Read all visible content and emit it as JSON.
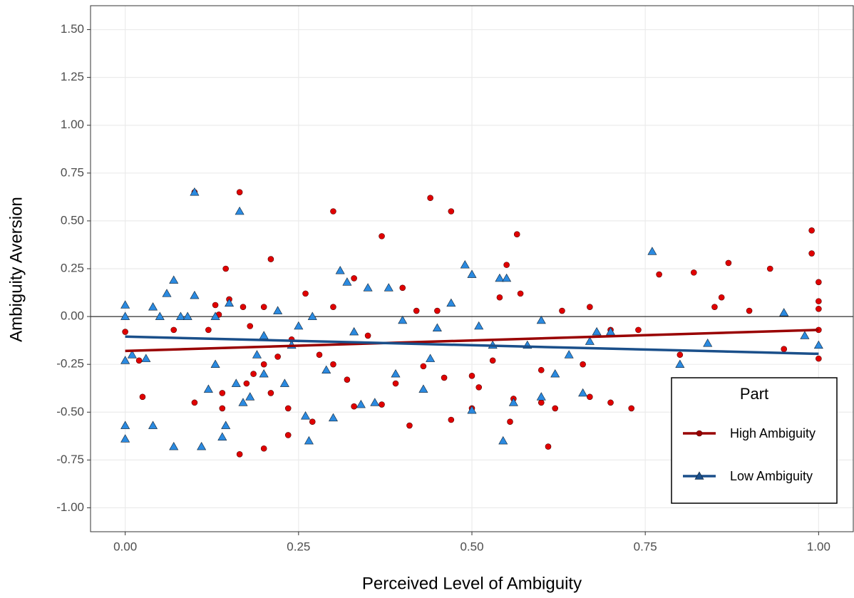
{
  "chart_data": {
    "type": "scatter",
    "x_label": "Perceived Level of Ambiguity",
    "y_label": "Ambiguity Aversion",
    "xlim": [
      -0.05,
      1.05
    ],
    "ylim": [
      -1.125,
      1.625
    ],
    "xticks": [
      {
        "value": 0,
        "label": "0.00"
      },
      {
        "value": 0.25,
        "label": "0.25"
      },
      {
        "value": 0.5,
        "label": "0.50"
      },
      {
        "value": 0.75,
        "label": "0.75"
      },
      {
        "value": 1,
        "label": "1.00"
      }
    ],
    "yticks": [
      {
        "value": -1,
        "label": "-1.00"
      },
      {
        "value": -0.75,
        "label": "-0.75"
      },
      {
        "value": -0.5,
        "label": "-0.50"
      },
      {
        "value": -0.25,
        "label": "-0.25"
      },
      {
        "value": 0,
        "label": "0.00"
      },
      {
        "value": 0.25,
        "label": "0.25"
      },
      {
        "value": 0.5,
        "label": "0.50"
      },
      {
        "value": 0.75,
        "label": "0.75"
      },
      {
        "value": 1,
        "label": "1.00"
      },
      {
        "value": 1.25,
        "label": "1.25"
      },
      {
        "value": 1.5,
        "label": "1.50"
      }
    ],
    "grid": true,
    "hline": 0,
    "legend_title": "Part",
    "legend_position": "right",
    "series": [
      {
        "name": "High Ambiguity",
        "marker": "circle",
        "color": "#e00000",
        "line_color": "#990000",
        "x": [
          0,
          0.02,
          0.025,
          0.07,
          0.1,
          0.1,
          0.12,
          0.13,
          0.135,
          0.14,
          0.14,
          0.145,
          0.15,
          0.165,
          0.165,
          0.17,
          0.175,
          0.18,
          0.185,
          0.2,
          0.2,
          0.2,
          0.21,
          0.21,
          0.22,
          0.235,
          0.235,
          0.24,
          0.26,
          0.27,
          0.28,
          0.3,
          0.3,
          0.3,
          0.32,
          0.33,
          0.33,
          0.35,
          0.37,
          0.37,
          0.39,
          0.4,
          0.41,
          0.42,
          0.43,
          0.44,
          0.45,
          0.46,
          0.47,
          0.47,
          0.5,
          0.5,
          0.51,
          0.53,
          0.54,
          0.55,
          0.555,
          0.56,
          0.565,
          0.57,
          0.6,
          0.6,
          0.61,
          0.62,
          0.63,
          0.66,
          0.67,
          0.67,
          0.7,
          0.7,
          0.73,
          0.74,
          0.77,
          0.8,
          0.82,
          0.85,
          0.86,
          0.87,
          0.9,
          0.93,
          0.95,
          0.99,
          0.99,
          1,
          1,
          1,
          1,
          1
        ],
        "values": [
          -0.08,
          -0.23,
          -0.42,
          -0.07,
          0.65,
          -0.45,
          -0.07,
          0.06,
          0.01,
          -0.4,
          -0.48,
          0.25,
          0.09,
          0.65,
          -0.72,
          0.05,
          -0.35,
          -0.05,
          -0.3,
          -0.69,
          0.05,
          -0.25,
          0.3,
          -0.4,
          -0.21,
          -0.62,
          -0.48,
          -0.12,
          0.12,
          -0.55,
          -0.2,
          0.55,
          0.05,
          -0.25,
          -0.33,
          0.2,
          -0.47,
          -0.1,
          0.42,
          -0.46,
          -0.35,
          0.15,
          -0.57,
          0.03,
          -0.26,
          0.62,
          0.03,
          -0.32,
          0.55,
          -0.54,
          -0.48,
          -0.31,
          -0.37,
          -0.23,
          0.1,
          0.27,
          -0.55,
          -0.43,
          0.43,
          0.12,
          -0.45,
          -0.28,
          -0.68,
          -0.48,
          0.03,
          -0.25,
          0.05,
          -0.42,
          -0.45,
          -0.07,
          -0.48,
          -0.07,
          0.22,
          -0.2,
          0.23,
          0.05,
          0.1,
          0.28,
          0.03,
          0.25,
          -0.17,
          0.45,
          0.33,
          0.18,
          0.08,
          -0.07,
          -0.22,
          0.04
        ],
        "fit_x": [
          0,
          1
        ],
        "fit_y": [
          -0.18,
          -0.07
        ]
      },
      {
        "name": "Low Ambiguity",
        "marker": "triangle",
        "color": "#2b8ae0",
        "line_color": "#1a4f8a",
        "x": [
          0,
          0,
          0,
          0,
          0,
          0.01,
          0.03,
          0.04,
          0.04,
          0.05,
          0.06,
          0.07,
          0.07,
          0.08,
          0.09,
          0.1,
          0.1,
          0.11,
          0.12,
          0.13,
          0.13,
          0.14,
          0.145,
          0.15,
          0.16,
          0.165,
          0.17,
          0.18,
          0.19,
          0.2,
          0.2,
          0.22,
          0.23,
          0.24,
          0.25,
          0.26,
          0.265,
          0.27,
          0.29,
          0.3,
          0.31,
          0.32,
          0.33,
          0.34,
          0.35,
          0.36,
          0.38,
          0.39,
          0.4,
          0.43,
          0.44,
          0.45,
          0.47,
          0.49,
          0.5,
          0.5,
          0.51,
          0.53,
          0.54,
          0.545,
          0.55,
          0.56,
          0.58,
          0.6,
          0.6,
          0.62,
          0.64,
          0.66,
          0.67,
          0.68,
          0.7,
          0.76,
          0.8,
          0.84,
          0.95,
          0.98,
          1
        ],
        "values": [
          0.06,
          -0.23,
          -0.57,
          -0.64,
          0,
          -0.2,
          -0.22,
          -0.57,
          0.05,
          0,
          0.12,
          0.19,
          -0.68,
          0,
          0,
          0.11,
          0.65,
          -0.68,
          -0.38,
          -0.25,
          0,
          -0.63,
          -0.57,
          0.07,
          -0.35,
          0.55,
          -0.45,
          -0.42,
          -0.2,
          -0.3,
          -0.1,
          0.03,
          -0.35,
          -0.15,
          -0.05,
          -0.52,
          -0.65,
          0,
          -0.28,
          -0.53,
          0.24,
          0.18,
          -0.08,
          -0.46,
          0.15,
          -0.45,
          0.15,
          -0.3,
          -0.02,
          -0.38,
          -0.22,
          -0.06,
          0.07,
          0.27,
          0.22,
          -0.49,
          -0.05,
          -0.15,
          0.2,
          -0.65,
          0.2,
          -0.45,
          -0.15,
          -0.02,
          -0.42,
          -0.3,
          -0.2,
          -0.4,
          -0.13,
          -0.08,
          -0.08,
          0.34,
          -0.25,
          -0.14,
          0.02,
          -0.1,
          -0.15
        ],
        "fit_x": [
          0,
          1
        ],
        "fit_y": [
          -0.105,
          -0.195
        ]
      }
    ]
  }
}
